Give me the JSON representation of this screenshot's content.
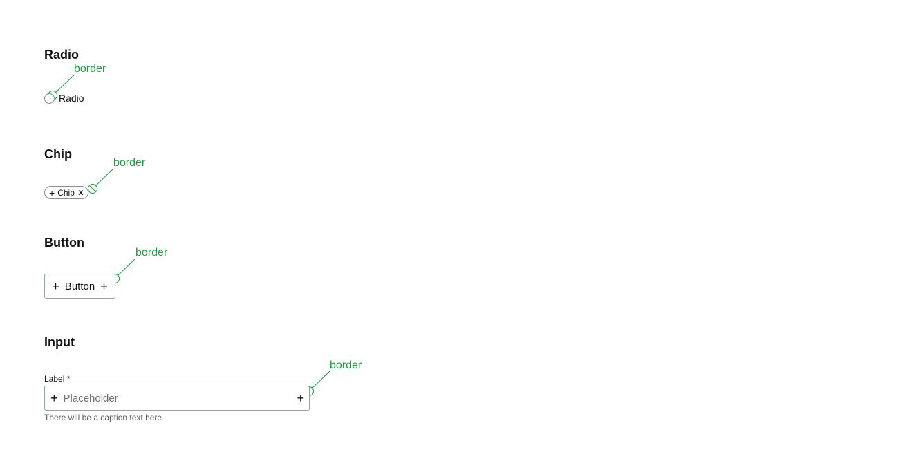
{
  "colors": {
    "annotation": "#1a9e3f",
    "border": "#8a8f98"
  },
  "annotation_label": "border",
  "radio": {
    "title": "Radio",
    "label": "Radio"
  },
  "chip": {
    "title": "Chip",
    "label": "Chip",
    "leading_icon": "plus-icon",
    "trailing_icon": "close-icon"
  },
  "button": {
    "title": "Button",
    "label": "Button",
    "leading_icon": "plus-icon",
    "trailing_icon": "plus-icon"
  },
  "input": {
    "title": "Input",
    "label": "Label *",
    "placeholder": "Placeholder",
    "value": "",
    "caption": "There will be a caption text here",
    "leading_icon": "plus-icon",
    "trailing_icon": "plus-icon"
  }
}
